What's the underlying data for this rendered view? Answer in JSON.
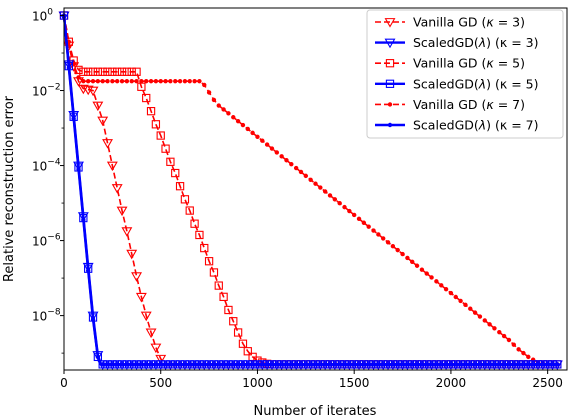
{
  "chart_data": {
    "type": "line",
    "title": "",
    "xlabel": "Number of iterates",
    "ylabel": "Relative reconstruction error",
    "xlim": [
      0,
      2600
    ],
    "ylim_log10": [
      -9.45,
      0.2
    ],
    "y_scale": "log",
    "x_ticks": [
      0,
      500,
      1000,
      1500,
      2000,
      2500
    ],
    "x_tick_labels": [
      "0",
      "500",
      "1000",
      "1500",
      "2000",
      "2500"
    ],
    "y_ticks_log10": [
      0,
      -2,
      -4,
      -6,
      -8
    ],
    "y_tick_labels": [
      {
        "base": "10",
        "exp": "0"
      },
      {
        "base": "10",
        "exp": "−2"
      },
      {
        "base": "10",
        "exp": "−4"
      },
      {
        "base": "10",
        "exp": "−6"
      },
      {
        "base": "10",
        "exp": "−8"
      }
    ],
    "grid": false,
    "legend_position": "top-right",
    "series": [
      {
        "name": "Vanilla GD (κ = 3)",
        "legend_pre": "Vanilla GD (",
        "legend_var": "κ",
        "legend_post": " = 3)",
        "color": "#ff0000",
        "dashed": true,
        "marker": "triangle-down",
        "marker_every": 25,
        "points": [
          [
            0,
            0
          ],
          [
            25,
            -0.8
          ],
          [
            50,
            -1.35
          ],
          [
            75,
            -1.75
          ],
          [
            100,
            -1.95
          ],
          [
            150,
            -2.0
          ],
          [
            175,
            -2.4
          ],
          [
            200,
            -2.8
          ],
          [
            225,
            -3.4
          ],
          [
            250,
            -4.0
          ],
          [
            275,
            -4.6
          ],
          [
            300,
            -5.2
          ],
          [
            325,
            -5.75
          ],
          [
            350,
            -6.35
          ],
          [
            375,
            -6.95
          ],
          [
            400,
            -7.5
          ],
          [
            425,
            -8.0
          ],
          [
            450,
            -8.45
          ],
          [
            475,
            -8.85
          ],
          [
            500,
            -9.15
          ],
          [
            520,
            -9.3
          ],
          [
            2560,
            -9.3
          ]
        ]
      },
      {
        "name": "ScaledGD(λ) (κ = 3)",
        "legend_pre": "ScaledGD(",
        "legend_var": "λ",
        "legend_post": ") (κ = 3)",
        "color": "#0000ff",
        "dashed": false,
        "marker": "triangle-down",
        "marker_every": 25,
        "points": [
          [
            0,
            0
          ],
          [
            25,
            -1.3
          ],
          [
            50,
            -2.65
          ],
          [
            75,
            -4.0
          ],
          [
            100,
            -5.35
          ],
          [
            125,
            -6.7
          ],
          [
            150,
            -8.0
          ],
          [
            175,
            -9.05
          ],
          [
            190,
            -9.3
          ],
          [
            2560,
            -9.3
          ]
        ]
      },
      {
        "name": "Vanilla GD (κ = 5)",
        "legend_pre": "Vanilla GD (",
        "legend_var": "κ",
        "legend_post": " = 5)",
        "color": "#ff0000",
        "dashed": true,
        "marker": "square",
        "marker_every": 25,
        "points": [
          [
            0,
            0
          ],
          [
            25,
            -0.7
          ],
          [
            50,
            -1.2
          ],
          [
            75,
            -1.45
          ],
          [
            100,
            -1.5
          ],
          [
            375,
            -1.5
          ],
          [
            400,
            -1.9
          ],
          [
            425,
            -2.2
          ],
          [
            450,
            -2.55
          ],
          [
            475,
            -2.9
          ],
          [
            500,
            -3.2
          ],
          [
            525,
            -3.55
          ],
          [
            550,
            -3.9
          ],
          [
            575,
            -4.2
          ],
          [
            600,
            -4.55
          ],
          [
            625,
            -4.9
          ],
          [
            650,
            -5.2
          ],
          [
            675,
            -5.55
          ],
          [
            700,
            -5.85
          ],
          [
            725,
            -6.2
          ],
          [
            750,
            -6.55
          ],
          [
            775,
            -6.85
          ],
          [
            800,
            -7.2
          ],
          [
            825,
            -7.5
          ],
          [
            850,
            -7.85
          ],
          [
            875,
            -8.15
          ],
          [
            900,
            -8.45
          ],
          [
            925,
            -8.75
          ],
          [
            950,
            -8.95
          ],
          [
            975,
            -9.1
          ],
          [
            1000,
            -9.2
          ],
          [
            1025,
            -9.25
          ],
          [
            1060,
            -9.3
          ],
          [
            2560,
            -9.3
          ]
        ]
      },
      {
        "name": "ScaledGD(λ) (κ = 5)",
        "legend_pre": "ScaledGD(",
        "legend_var": "λ",
        "legend_post": ") (κ = 5)",
        "color": "#0000ff",
        "dashed": false,
        "marker": "square",
        "marker_every": 25,
        "points": [
          [
            0,
            0
          ],
          [
            25,
            -1.35
          ],
          [
            50,
            -2.7
          ],
          [
            75,
            -4.05
          ],
          [
            100,
            -5.4
          ],
          [
            125,
            -6.75
          ],
          [
            150,
            -8.05
          ],
          [
            175,
            -9.1
          ],
          [
            190,
            -9.3
          ],
          [
            2560,
            -9.3
          ]
        ]
      },
      {
        "name": "Vanilla GD (κ = 7)",
        "legend_pre": "Vanilla GD (",
        "legend_var": "κ",
        "legend_post": " = 7)",
        "color": "#ff0000",
        "dashed": true,
        "marker": "circle",
        "marker_every": 25,
        "points": [
          [
            0,
            0
          ],
          [
            25,
            -0.7
          ],
          [
            50,
            -1.3
          ],
          [
            75,
            -1.65
          ],
          [
            100,
            -1.75
          ],
          [
            700,
            -1.75
          ],
          [
            725,
            -1.85
          ],
          [
            750,
            -2.05
          ],
          [
            775,
            -2.25
          ],
          [
            800,
            -2.4
          ],
          [
            2300,
            -8.65
          ],
          [
            2350,
            -8.9
          ],
          [
            2400,
            -9.1
          ],
          [
            2450,
            -9.25
          ],
          [
            2500,
            -9.3
          ],
          [
            2560,
            -9.3
          ]
        ]
      },
      {
        "name": "ScaledGD(λ) (κ = 7)",
        "legend_pre": "ScaledGD(",
        "legend_var": "λ",
        "legend_post": ") (κ = 7)",
        "color": "#0000ff",
        "dashed": false,
        "marker": "circle",
        "marker_every": 25,
        "points": [
          [
            0,
            0
          ],
          [
            25,
            -1.4
          ],
          [
            50,
            -2.75
          ],
          [
            75,
            -4.1
          ],
          [
            100,
            -5.45
          ],
          [
            125,
            -6.8
          ],
          [
            150,
            -8.1
          ],
          [
            175,
            -9.1
          ],
          [
            190,
            -9.3
          ],
          [
            2560,
            -9.3
          ]
        ]
      }
    ]
  }
}
